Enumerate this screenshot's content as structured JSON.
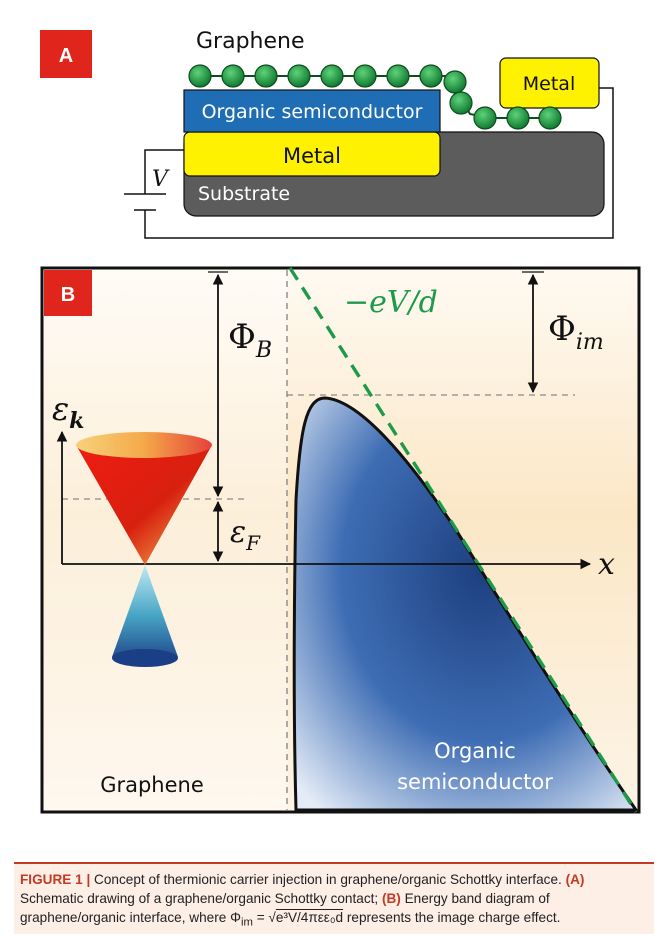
{
  "panel_a": {
    "label": "A",
    "graphene": "Graphene",
    "organic": "Organic semiconductor",
    "metal_left": "Metal",
    "metal_right": "Metal",
    "substrate": "Substrate",
    "voltage": "V"
  },
  "panel_b": {
    "label": "B",
    "phi_b": "Φ",
    "phi_b_sub": "B",
    "phi_im": "Φ",
    "phi_im_sub": "im",
    "slope": "−eV/d",
    "eps_k": "ε",
    "eps_k_sub": "k",
    "eps_f": "ε",
    "eps_f_sub": "F",
    "x_axis": "x",
    "graphene": "Graphene",
    "organic_1": "Organic",
    "organic_2": "semiconductor"
  },
  "caption": {
    "figure_no": "FIGURE 1 |",
    "text1": " Concept of thermionic carrier injection in graphene/organic Schottky interface. ",
    "a_ref": "(A)",
    "text2": " Schematic drawing of a graphene/organic Schottky contact; ",
    "b_ref": "(B)",
    "text3": " Energy band diagram of graphene/organic interface, where ",
    "phi_sym": "Φ",
    "phi_sub": "im",
    "eq_mid": " = √",
    "eq_rad": "e³V/4πεε₀d",
    "text4": " represents the image charge effect."
  },
  "colors": {
    "label_red": "#e0261c",
    "organic_blue": "#1f6db5",
    "metal_yellow": "#fff200",
    "substrate_grey": "#5c5c5c",
    "graphene_green": "#1a9a3c",
    "slope_green": "#1d9a4a"
  }
}
